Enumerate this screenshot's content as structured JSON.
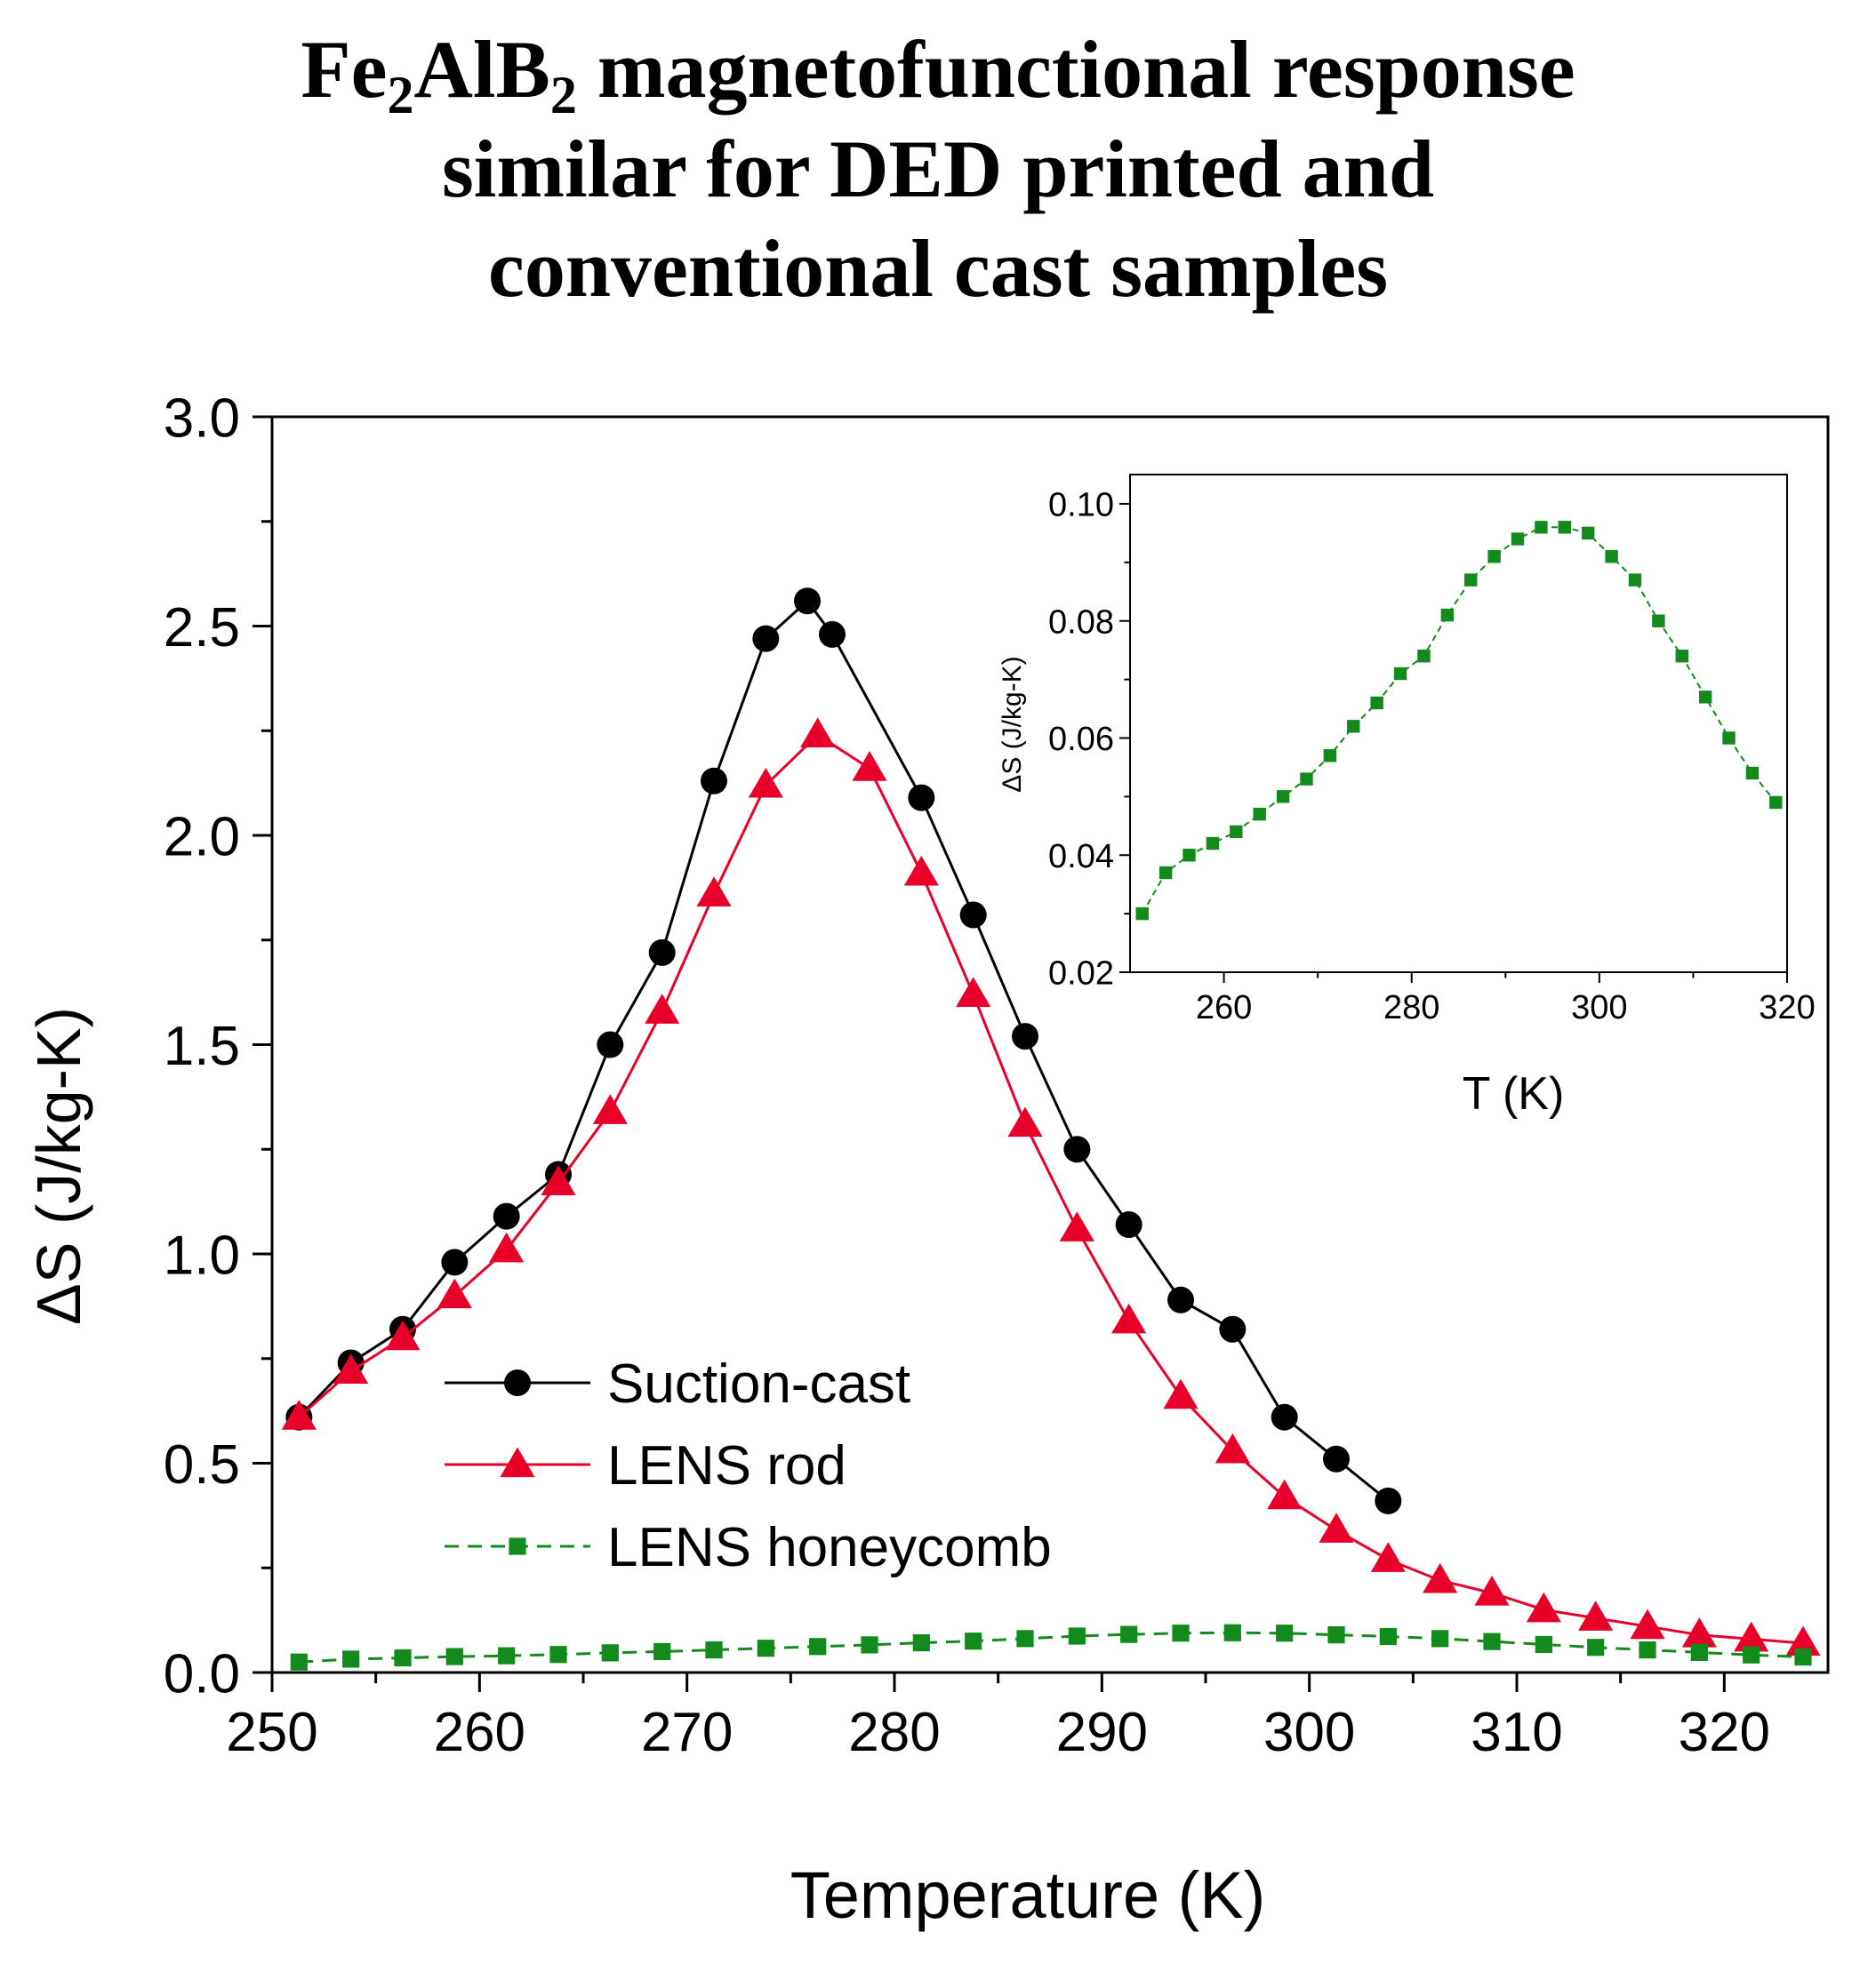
{
  "title": {
    "formula_parts": [
      "Fe",
      "2",
      "AlB",
      "2"
    ],
    "rest_line1": " magnetofunctional response",
    "line2": "similar for DED printed and",
    "line3": "conventional cast samples"
  },
  "colors": {
    "suction": "#000000",
    "lens_rod": "#e8002a",
    "honeycomb": "#128a1c"
  },
  "chart_data": [
    {
      "type": "line",
      "xlabel": "Temperature (K)",
      "ylabel": "ΔS (J/kg-K)",
      "xlim": [
        250,
        325
      ],
      "ylim": [
        0,
        3.0
      ],
      "x_ticks": [
        "250",
        "260",
        "270",
        "280",
        "290",
        "300",
        "310",
        "320"
      ],
      "y_ticks": [
        "0.0",
        "0.5",
        "1.0",
        "1.5",
        "2.0",
        "2.5",
        "3.0"
      ],
      "legend_position": "lower-left",
      "series": [
        {
          "name": "Suction-cast",
          "marker": "circle",
          "x": [
            251.3,
            253.8,
            256.3,
            258.8,
            261.3,
            263.8,
            266.3,
            268.8,
            271.3,
            273.8,
            275.8,
            277.0,
            281.3,
            283.8,
            286.3,
            288.8,
            291.3,
            293.8,
            296.3,
            298.8,
            301.3,
            303.8
          ],
          "values": [
            0.61,
            0.74,
            0.82,
            0.98,
            1.09,
            1.19,
            1.5,
            1.72,
            2.13,
            2.47,
            2.56,
            2.48,
            2.09,
            1.81,
            1.52,
            1.25,
            1.07,
            0.89,
            0.82,
            0.61,
            0.51,
            0.41
          ]
        },
        {
          "name": "LENS rod",
          "marker": "triangle",
          "x": [
            251.3,
            253.8,
            256.3,
            258.8,
            261.3,
            263.8,
            266.3,
            268.8,
            271.3,
            273.8,
            276.3,
            278.8,
            281.3,
            283.8,
            286.3,
            288.8,
            291.3,
            293.8,
            296.3,
            298.8,
            301.3,
            303.8,
            306.3,
            308.8,
            311.3,
            313.8,
            316.3,
            318.8,
            321.3,
            323.8
          ],
          "values": [
            0.61,
            0.72,
            0.8,
            0.9,
            1.01,
            1.17,
            1.34,
            1.58,
            1.86,
            2.12,
            2.24,
            2.16,
            1.91,
            1.62,
            1.31,
            1.06,
            0.84,
            0.66,
            0.53,
            0.42,
            0.34,
            0.27,
            0.22,
            0.19,
            0.15,
            0.13,
            0.11,
            0.09,
            0.08,
            0.07
          ]
        },
        {
          "name": "LENS honeycomb",
          "marker": "square",
          "x": [
            251.3,
            253.8,
            256.3,
            258.8,
            261.3,
            263.8,
            266.3,
            268.8,
            271.3,
            273.8,
            276.3,
            278.8,
            281.3,
            283.8,
            286.3,
            288.8,
            291.3,
            293.8,
            296.3,
            298.8,
            301.3,
            303.8,
            306.3,
            308.8,
            311.3,
            313.8,
            316.3,
            318.8,
            321.3,
            323.8
          ],
          "values": [
            0.025,
            0.032,
            0.035,
            0.038,
            0.04,
            0.043,
            0.047,
            0.05,
            0.054,
            0.058,
            0.062,
            0.066,
            0.071,
            0.075,
            0.081,
            0.087,
            0.091,
            0.094,
            0.095,
            0.094,
            0.09,
            0.086,
            0.081,
            0.074,
            0.067,
            0.06,
            0.054,
            0.048,
            0.042,
            0.037
          ]
        }
      ]
    },
    {
      "type": "line",
      "inset": true,
      "xlabel": "T (K)",
      "ylabel": "ΔS (J/kg-K)",
      "xlim": [
        250,
        320
      ],
      "ylim": [
        0.02,
        0.105
      ],
      "x_ticks": [
        "260",
        "280",
        "300",
        "320"
      ],
      "y_ticks": [
        "0.02",
        "0.04",
        "0.06",
        "0.08",
        "0.10"
      ],
      "series": [
        {
          "name": "LENS honeycomb",
          "marker": "square",
          "x": [
            251.3,
            253.8,
            256.3,
            258.8,
            261.3,
            263.8,
            266.3,
            268.8,
            271.3,
            273.8,
            276.3,
            278.8,
            281.3,
            283.8,
            286.3,
            288.8,
            291.3,
            293.8,
            296.3,
            298.8,
            301.3,
            303.8,
            306.3,
            308.8,
            311.3,
            313.8,
            316.3,
            318.8
          ],
          "values": [
            0.03,
            0.037,
            0.04,
            0.042,
            0.044,
            0.047,
            0.05,
            0.053,
            0.057,
            0.062,
            0.066,
            0.071,
            0.074,
            0.081,
            0.087,
            0.091,
            0.094,
            0.096,
            0.096,
            0.095,
            0.091,
            0.087,
            0.08,
            0.074,
            0.067,
            0.06,
            0.054,
            0.049
          ]
        }
      ]
    }
  ]
}
